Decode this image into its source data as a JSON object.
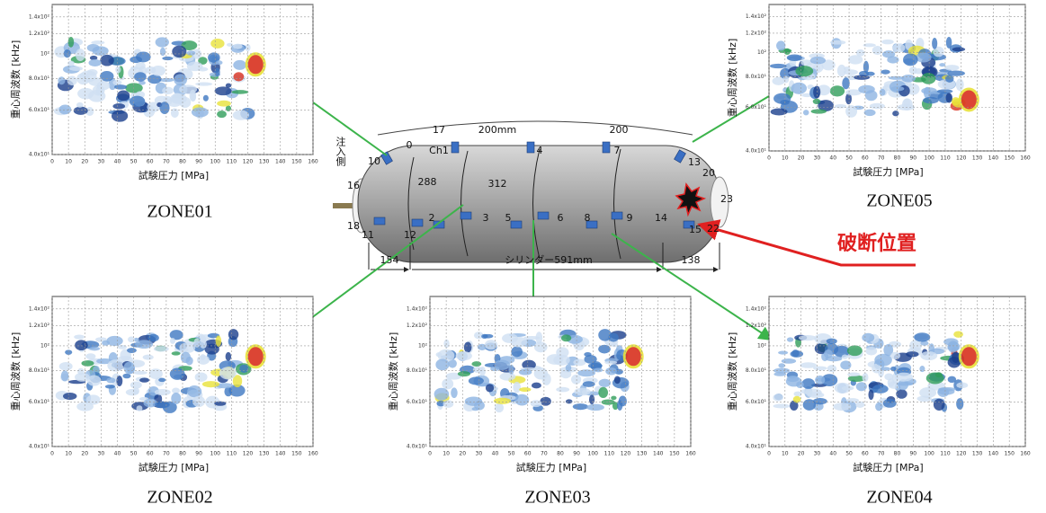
{
  "axes": {
    "xlabel": "試験圧力 [MPa]",
    "ylabel": "重心周波数 [kHz]",
    "xticks": [
      0,
      10,
      20,
      30,
      40,
      50,
      60,
      70,
      80,
      90,
      100,
      110,
      120,
      130,
      140,
      150,
      160
    ],
    "yticks": [
      {
        "value": 40,
        "label": "4.0x10¹"
      },
      {
        "value": 60,
        "label": "6.0x10¹"
      },
      {
        "value": 80,
        "label": "8.0x10¹"
      },
      {
        "value": 100,
        "label": "10²"
      },
      {
        "value": 120,
        "label": "1.2x10²"
      },
      {
        "value": 140,
        "label": "1.4x10²"
      }
    ]
  },
  "plots": [
    {
      "title": "ZONE01"
    },
    {
      "title": "ZONE05"
    },
    {
      "title": "ZONE02"
    },
    {
      "title": "ZONE03"
    },
    {
      "title": "ZONE04"
    }
  ],
  "cylinder": {
    "inlet": "注入側",
    "labels": [
      "17",
      "0",
      "200mm",
      "200",
      "Ch1",
      "4",
      "7",
      "10",
      "13",
      "288",
      "312",
      "2",
      "3",
      "5",
      "6",
      "8",
      "9",
      "14",
      "11",
      "12",
      "16",
      "18",
      "20",
      "23",
      "22",
      "15"
    ],
    "dims": [
      "154",
      "シリンダー591mm",
      "138"
    ]
  },
  "fracture": "破断位置"
}
